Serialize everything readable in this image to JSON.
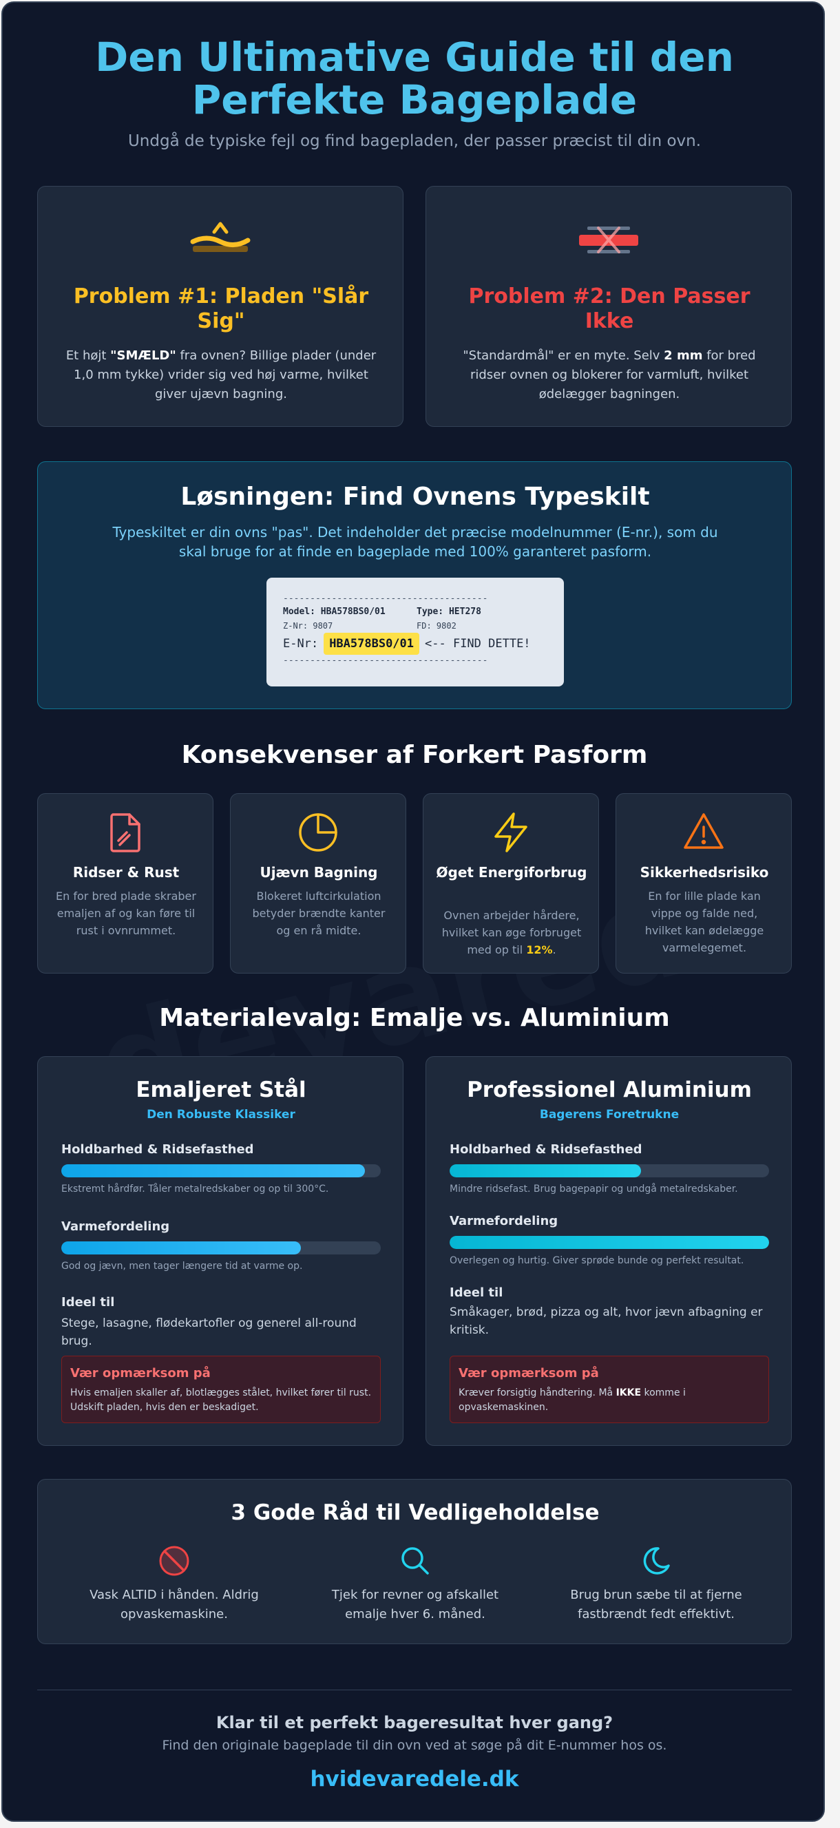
{
  "header": {
    "title_line1": "Den Ultimative Guide til den",
    "title_line2": "Perfekte Bageplade",
    "subtitle": "Undgå de typiske fejl og find bagepladen, der passer præcist til din ovn."
  },
  "watermark": "devarede",
  "problems": [
    {
      "icon": "warped-plate-icon",
      "color": "#fbbf24",
      "title": "Problem #1: Pladen \"Slår Sig\"",
      "text_before": "Et højt ",
      "text_bold": "\"SMÆLD\"",
      "text_after": " fra ovnen? Billige plader (under 1,0 mm tykke) vrider sig ved høj varme, hvilket giver ujævn bagning."
    },
    {
      "icon": "wrong-fit-icon",
      "color": "#ef4444",
      "title": "Problem #2: Den Passer Ikke",
      "text_before": "\"Standardmål\" er en myte. Selv ",
      "text_bold": "2 mm",
      "text_after": " for bred ridser ovnen og blokerer for varmluft, hvilket ødelægger bagningen."
    }
  ],
  "solution": {
    "title": "Løsningen: Find Ovnens Typeskilt",
    "text": "Typeskiltet er din ovns \"pas\". Det indeholder det præcise modelnummer (E-nr.), som du skal bruge for at finde en bageplade med 100% garanteret pasform.",
    "plate": {
      "dash": "--------------------------------------",
      "model": "Model: HBA578BS0/01",
      "type": "Type: HET278",
      "znr": "Z-Nr: 9807",
      "fd": "FD: 9802",
      "enr_label": "E-Nr:",
      "enr_value": "HBA578BS0/01",
      "enr_note": "<-- FIND DETTE!"
    }
  },
  "consequences": {
    "title": "Konsekvenser af Forkert Pasform",
    "items": [
      {
        "icon": "scratched-document-icon",
        "color": "#f87171",
        "title": "Ridser & Rust",
        "text": "En for bred plade skraber emaljen af og kan føre til rust i ovnrummet."
      },
      {
        "icon": "pie-chart-icon",
        "color": "#fbbf24",
        "title": "Ujævn Bagning",
        "text": "Blokeret luftcirkulation betyder brændte kanter og en rå midte."
      },
      {
        "icon": "lightning-icon",
        "color": "#facc15",
        "title": "Øget Energiforbrug",
        "text": "Ovnen arbejder hårdere, hvilket kan øge forbruget med op til ",
        "highlight": "12%",
        "text_end": "."
      },
      {
        "icon": "warning-triangle-icon",
        "color": "#f97316",
        "title": "Sikkerhedsrisiko",
        "text": "En for lille plade kan vippe og falde ned, hvilket kan ødelægge varmelegemet."
      }
    ]
  },
  "materials": {
    "title": "Materialevalg: Emalje vs. Aluminium",
    "cards": [
      {
        "title": "Emaljeret Stål",
        "subtitle": "Den Robuste Klassiker",
        "m1_label": "Holdbarhed & Ridsefasthed",
        "m1_value": 0.95,
        "m1_note": "Ekstremt hårdfør. Tåler metalredskaber og op til 300°C.",
        "m2_label": "Varmefordeling",
        "m2_value": 0.75,
        "m2_note": "God og jævn, men tager længere tid at varme op.",
        "ideal_label": "Ideel til",
        "ideal_text": "Stege, lasagne, flødekartofler og generel all-round brug.",
        "warn_title": "Vær opmærksom på",
        "warn_before": "Hvis emaljen skaller af, blotlægges stålet, hvilket fører til rust. Udskift pladen, hvis den er beskadiget.",
        "warn_bold": "",
        "warn_after": ""
      },
      {
        "title": "Professionel Aluminium",
        "subtitle": "Bagerens Foretrukne",
        "m1_label": "Holdbarhed & Ridsefasthed",
        "m1_value": 0.6,
        "m1_note": "Mindre ridsefast. Brug bagepapir og undgå metalredskaber.",
        "m2_label": "Varmefordeling",
        "m2_value": 1.0,
        "m2_note": "Overlegen og hurtig. Giver sprøde bunde og perfekt resultat.",
        "ideal_label": "Ideel til",
        "ideal_text": "Småkager, brød, pizza og alt, hvor jævn afbagning er kritisk.",
        "warn_title": "Vær opmærksom på",
        "warn_before": "Kræver forsigtig håndtering. Må ",
        "warn_bold": "IKKE",
        "warn_after": " komme i opvaskemaskinen."
      }
    ]
  },
  "tips": {
    "title": "3 Gode Råd til Vedligeholdelse",
    "items": [
      {
        "icon": "no-dishwasher-icon",
        "text": "Vask ALTID i hånden. Aldrig opvaskemaskine."
      },
      {
        "icon": "search-icon",
        "text": "Tjek for revner og afskallet emalje hver 6. måned."
      },
      {
        "icon": "moon-icon",
        "text": "Brug brun sæbe til at fjerne fastbrændt fedt effektivt."
      }
    ]
  },
  "footer": {
    "cta_title": "Klar til et perfekt bageresultat hver gang?",
    "cta_sub": "Find den originale bageplade til din ovn ved at søge på dit E-nummer hos os.",
    "link": "hvidevaredele.dk"
  }
}
